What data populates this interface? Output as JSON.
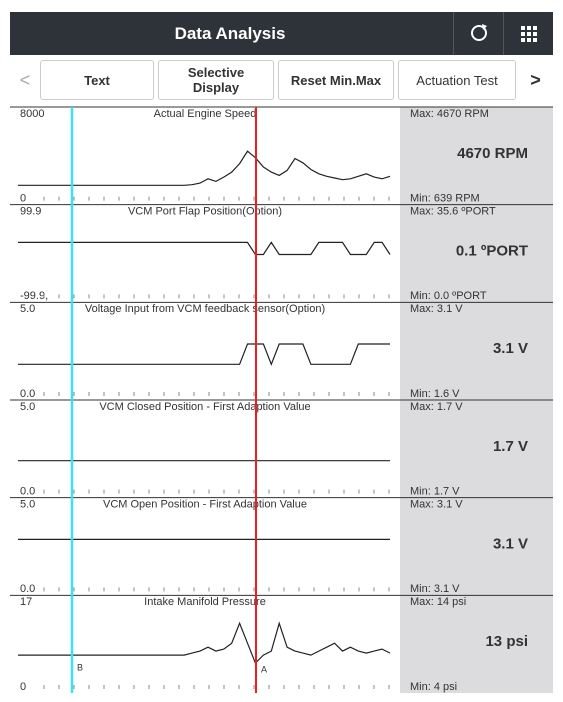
{
  "header": {
    "title": "Data Analysis"
  },
  "toolbar": {
    "prev": "<",
    "buttons": [
      "Text",
      "Selective Display",
      "Reset Min.Max",
      "Actuation Test"
    ],
    "next": ">"
  },
  "cursors": {
    "b": "B",
    "a": "A"
  },
  "panels": [
    {
      "title": "Actual Engine Speed",
      "ylim": [
        0,
        8000
      ],
      "yticks": [
        0,
        8000
      ],
      "max": "Max: 4670 RPM",
      "current": "4670 RPM",
      "min": "Min: 639 RPM",
      "values": [
        640,
        640,
        640,
        640,
        640,
        640,
        640,
        640,
        640,
        640,
        640,
        640,
        640,
        640,
        640,
        640,
        640,
        640,
        640,
        640,
        640,
        640,
        700,
        900,
        1400,
        1100,
        1600,
        2200,
        3200,
        4670,
        3900,
        2800,
        2200,
        1800,
        2400,
        3800,
        3300,
        2500,
        2000,
        1700,
        1500,
        1300,
        1400,
        1700,
        2000,
        1600,
        1400,
        1700
      ]
    },
    {
      "title": "VCM Port Flap Position(Option)",
      "ylim": [
        -99.9,
        99.9
      ],
      "yticks": [
        {
          "value": -99.9,
          "label": "-99.9,"
        },
        99.9
      ],
      "max": "Max: 35.6 ºPORT",
      "current": "0.1 ºPORT",
      "min": "Min: 0.0 ºPORT",
      "values": [
        35.6,
        35.6,
        35.6,
        35.6,
        35.6,
        35.6,
        35.6,
        35.6,
        35.6,
        35.6,
        35.6,
        35.6,
        35.6,
        35.6,
        35.6,
        35.6,
        35.6,
        35.6,
        35.6,
        35.6,
        35.6,
        35.6,
        35.6,
        35.6,
        35.6,
        35.6,
        35.6,
        35.6,
        35.6,
        35.6,
        0,
        0,
        35.6,
        0,
        0,
        0,
        0,
        0,
        35.6,
        35.6,
        35.6,
        35.6,
        0,
        0,
        0,
        35.6,
        35.6,
        0
      ]
    },
    {
      "title": "Voltage Input from VCM feedback sensor(Option)",
      "ylim": [
        0,
        5
      ],
      "yticks": [
        {
          "value": 0,
          "label": "0.0"
        },
        {
          "value": 5,
          "label": "5.0"
        }
      ],
      "max": "Max: 3.1 V",
      "current": "3.1 V",
      "min": "Min: 1.6 V",
      "values": [
        1.6,
        1.6,
        1.6,
        1.6,
        1.6,
        1.6,
        1.6,
        1.6,
        1.6,
        1.6,
        1.6,
        1.6,
        1.6,
        1.6,
        1.6,
        1.6,
        1.6,
        1.6,
        1.6,
        1.6,
        1.6,
        1.6,
        1.6,
        1.6,
        1.6,
        1.6,
        1.6,
        1.6,
        1.6,
        3.1,
        3.1,
        3.1,
        1.6,
        3.1,
        3.1,
        3.1,
        3.1,
        1.6,
        1.6,
        1.6,
        1.6,
        1.6,
        1.6,
        3.1,
        3.1,
        3.1,
        3.1,
        3.1
      ]
    },
    {
      "title": "VCM Closed Position - First Adaption Value",
      "ylim": [
        0,
        5
      ],
      "yticks": [
        {
          "value": 0,
          "label": "0.0"
        },
        {
          "value": 5,
          "label": "5.0"
        }
      ],
      "max": "Max: 1.7 V",
      "current": "1.7 V",
      "min": "Min: 1.7 V",
      "values": [
        1.7,
        1.7,
        1.7,
        1.7,
        1.7,
        1.7,
        1.7,
        1.7,
        1.7,
        1.7,
        1.7,
        1.7,
        1.7,
        1.7,
        1.7,
        1.7,
        1.7,
        1.7,
        1.7,
        1.7,
        1.7,
        1.7,
        1.7,
        1.7,
        1.7,
        1.7,
        1.7,
        1.7,
        1.7,
        1.7,
        1.7,
        1.7,
        1.7,
        1.7,
        1.7,
        1.7,
        1.7,
        1.7,
        1.7,
        1.7,
        1.7,
        1.7,
        1.7,
        1.7,
        1.7,
        1.7,
        1.7,
        1.7
      ]
    },
    {
      "title": "VCM Open Position - First Adaption Value",
      "ylim": [
        0,
        5
      ],
      "yticks": [
        {
          "value": 0,
          "label": "0.0"
        },
        {
          "value": 5,
          "label": "5.0"
        }
      ],
      "max": "Max: 3.1 V",
      "current": "3.1 V",
      "min": "Min: 3.1 V",
      "values": [
        3.1,
        3.1,
        3.1,
        3.1,
        3.1,
        3.1,
        3.1,
        3.1,
        3.1,
        3.1,
        3.1,
        3.1,
        3.1,
        3.1,
        3.1,
        3.1,
        3.1,
        3.1,
        3.1,
        3.1,
        3.1,
        3.1,
        3.1,
        3.1,
        3.1,
        3.1,
        3.1,
        3.1,
        3.1,
        3.1,
        3.1,
        3.1,
        3.1,
        3.1,
        3.1,
        3.1,
        3.1,
        3.1,
        3.1,
        3.1,
        3.1,
        3.1,
        3.1,
        3.1,
        3.1,
        3.1,
        3.1,
        3.1
      ]
    },
    {
      "title": "Intake Manifold Pressure",
      "ylim": [
        0,
        17
      ],
      "yticks": [
        0,
        17
      ],
      "max": "Max: 14 psi",
      "current": "13 psi",
      "min": "Min: 4 psi",
      "values": [
        6,
        6,
        6,
        6,
        6,
        6,
        6,
        6,
        6,
        6,
        6,
        6,
        6,
        6,
        6,
        6,
        6,
        6,
        6,
        6,
        6,
        6,
        6.5,
        7,
        8,
        7,
        7.5,
        9,
        14,
        9,
        4,
        6,
        7,
        14,
        8,
        7,
        6.5,
        6,
        7,
        8,
        9,
        7,
        8,
        7,
        6.5,
        7,
        7.5,
        6.5
      ]
    }
  ]
}
